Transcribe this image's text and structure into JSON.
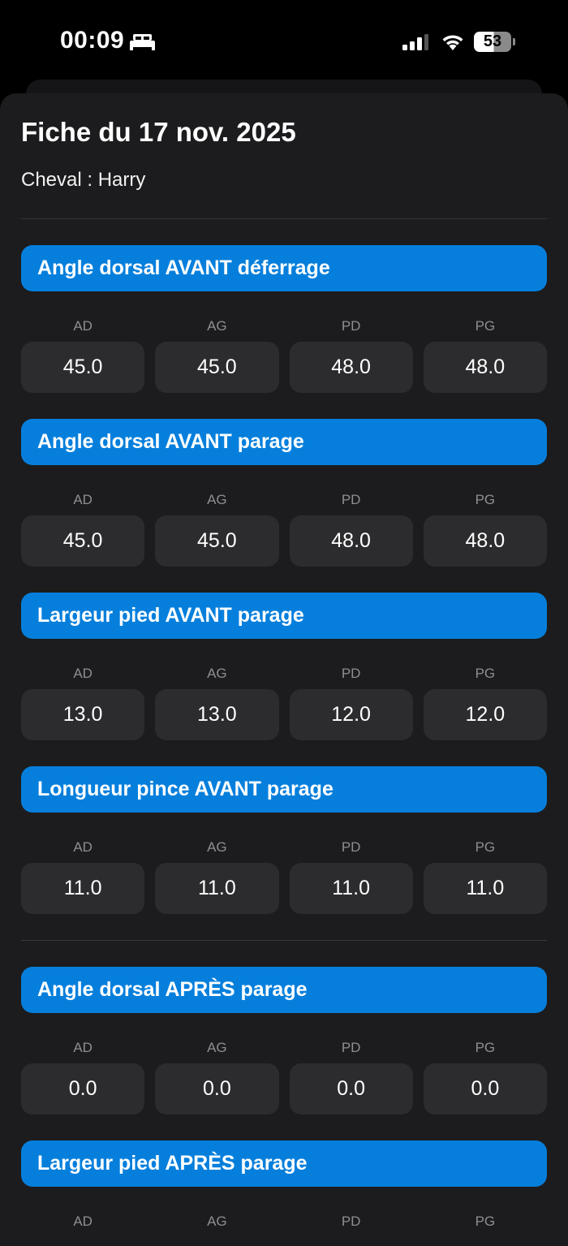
{
  "status_bar": {
    "time": "00:09",
    "battery": "53",
    "icons": [
      "bed-icon",
      "signal-icon",
      "wifi-icon",
      "battery-icon"
    ]
  },
  "sheet": {
    "title": "Fiche du 17 nov. 2025",
    "horse": "Cheval : Harry"
  },
  "columns": [
    "AD",
    "AG",
    "PD",
    "PG"
  ],
  "sections": [
    {
      "title": "Angle dorsal AVANT déferrage",
      "values": [
        "45.0",
        "45.0",
        "48.0",
        "48.0"
      ]
    },
    {
      "title": "Angle dorsal AVANT parage",
      "values": [
        "45.0",
        "45.0",
        "48.0",
        "48.0"
      ]
    },
    {
      "title": "Largeur pied AVANT parage",
      "values": [
        "13.0",
        "13.0",
        "12.0",
        "12.0"
      ]
    },
    {
      "title": "Longueur pince AVANT parage",
      "values": [
        "11.0",
        "11.0",
        "11.0",
        "11.0"
      ]
    },
    {
      "title": "Angle dorsal APRÈS parage",
      "values": [
        "0.0",
        "0.0",
        "0.0",
        "0.0"
      ]
    },
    {
      "title": "Largeur pied APRÈS parage",
      "values": []
    }
  ],
  "colors": {
    "accent": "#067fdc",
    "background": "#1c1c1e",
    "field": "#2c2c2e"
  }
}
